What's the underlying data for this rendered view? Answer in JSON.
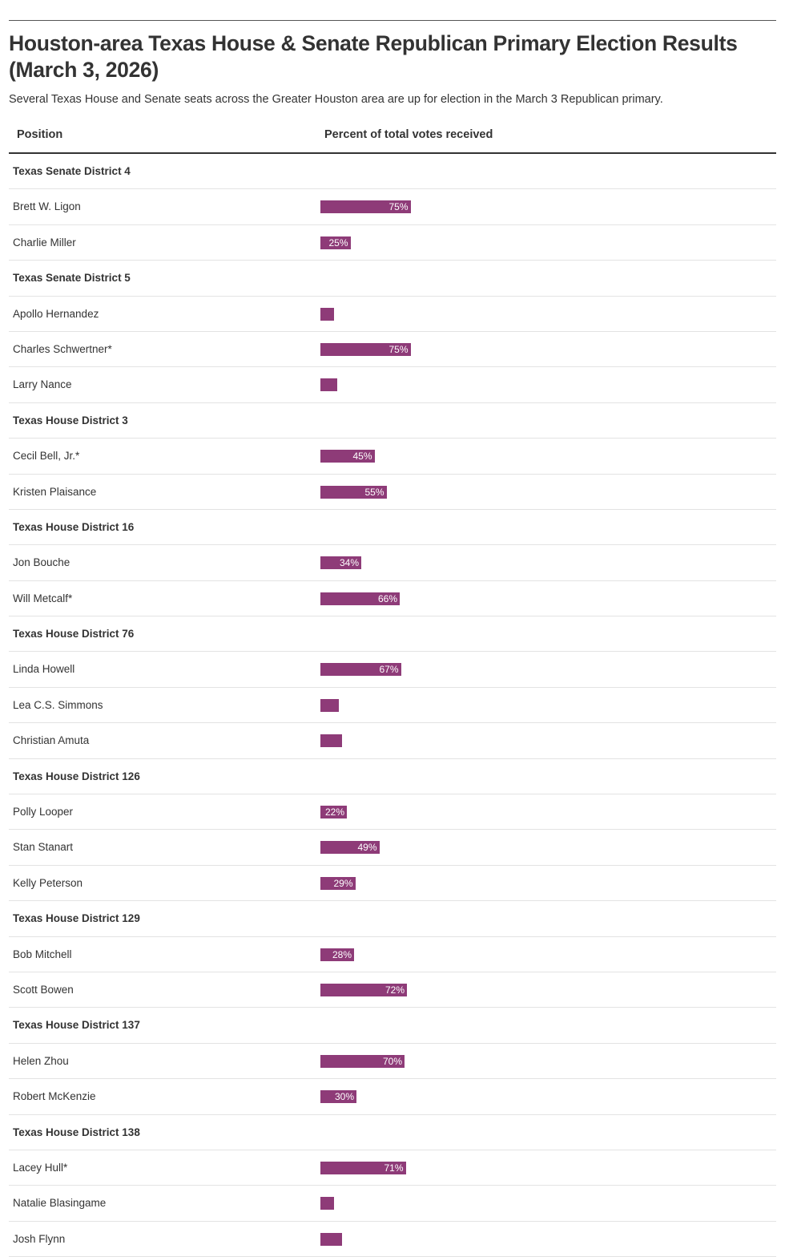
{
  "header": {
    "title": "Houston-area Texas House & Senate Republican Primary Election Results (March 3, 2026)",
    "subtitle": "Several Texas House and Senate seats across the Greater Houston area are up for election in the March 3 Republican primary."
  },
  "table": {
    "columns": [
      "Position",
      "Percent of total votes received"
    ]
  },
  "colors": {
    "bar": "#8e3b78"
  },
  "chart_data": {
    "type": "bar",
    "orientation": "horizontal",
    "xlim": [
      0,
      100
    ],
    "groups": [
      {
        "name": "Texas Senate District 4",
        "candidates": [
          {
            "name": "Brett W. Ligon",
            "value": 75,
            "label": "75%"
          },
          {
            "name": "Charlie Miller",
            "value": 25,
            "label": "25%"
          }
        ]
      },
      {
        "name": "Texas Senate District 5",
        "candidates": [
          {
            "name": "Apollo Hernandez",
            "value": 11,
            "label": ""
          },
          {
            "name": "Charles Schwertner*",
            "value": 75,
            "label": "75%"
          },
          {
            "name": "Larry Nance",
            "value": 14,
            "label": ""
          }
        ]
      },
      {
        "name": "Texas House District 3",
        "candidates": [
          {
            "name": "Cecil Bell, Jr.*",
            "value": 45,
            "label": "45%"
          },
          {
            "name": "Kristen Plaisance",
            "value": 55,
            "label": "55%"
          }
        ]
      },
      {
        "name": "Texas House District 16",
        "candidates": [
          {
            "name": "Jon Bouche",
            "value": 34,
            "label": "34%"
          },
          {
            "name": "Will Metcalf*",
            "value": 66,
            "label": "66%"
          }
        ]
      },
      {
        "name": "Texas House District 76",
        "candidates": [
          {
            "name": "Linda Howell",
            "value": 67,
            "label": "67%"
          },
          {
            "name": "Lea C.S. Simmons",
            "value": 15,
            "label": ""
          },
          {
            "name": "Christian Amuta",
            "value": 18,
            "label": ""
          }
        ]
      },
      {
        "name": "Texas House District 126",
        "candidates": [
          {
            "name": "Polly Looper",
            "value": 22,
            "label": "22%"
          },
          {
            "name": "Stan Stanart",
            "value": 49,
            "label": "49%"
          },
          {
            "name": "Kelly Peterson",
            "value": 29,
            "label": "29%"
          }
        ]
      },
      {
        "name": "Texas House District 129",
        "candidates": [
          {
            "name": "Bob Mitchell",
            "value": 28,
            "label": "28%"
          },
          {
            "name": "Scott Bowen",
            "value": 72,
            "label": "72%"
          }
        ]
      },
      {
        "name": "Texas House District 137",
        "candidates": [
          {
            "name": "Helen Zhou",
            "value": 70,
            "label": "70%"
          },
          {
            "name": "Robert McKenzie",
            "value": 30,
            "label": "30%"
          }
        ]
      },
      {
        "name": "Texas House District 138",
        "candidates": [
          {
            "name": "Lacey Hull*",
            "value": 71,
            "label": "71%"
          },
          {
            "name": "Natalie Blasingame",
            "value": 11,
            "label": ""
          },
          {
            "name": "Josh Flynn",
            "value": 18,
            "label": ""
          }
        ]
      }
    ]
  }
}
